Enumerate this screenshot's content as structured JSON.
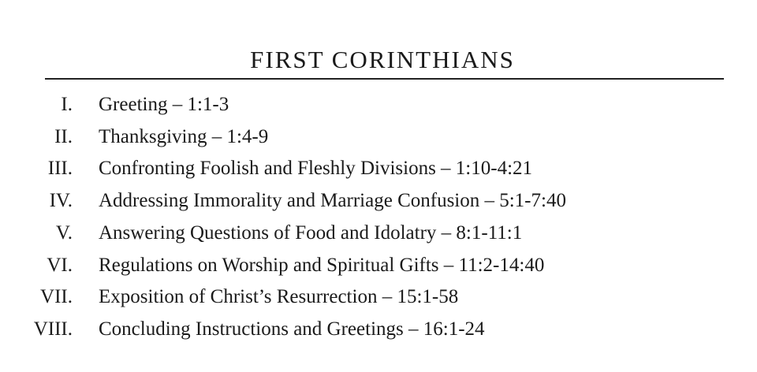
{
  "title": "FIRST CORINTHIANS",
  "outline": [
    {
      "numeral": "I.",
      "text": "Greeting – 1:1-3"
    },
    {
      "numeral": "II.",
      "text": "Thanksgiving – 1:4-9"
    },
    {
      "numeral": "III.",
      "text": "Confronting Foolish and Fleshly Divisions – 1:10-4:21"
    },
    {
      "numeral": "IV.",
      "text": "Addressing Immorality and Marriage Confusion – 5:1-7:40"
    },
    {
      "numeral": "V.",
      "text": "Answering Questions of Food and Idolatry – 8:1-11:1"
    },
    {
      "numeral": "VI.",
      "text": "Regulations on Worship and Spiritual Gifts – 11:2-14:40"
    },
    {
      "numeral": "VII.",
      "text": "Exposition of Christ’s Resurrection – 15:1-58"
    },
    {
      "numeral": "VIII.",
      "text": "Concluding Instructions and Greetings – 16:1-24"
    }
  ]
}
